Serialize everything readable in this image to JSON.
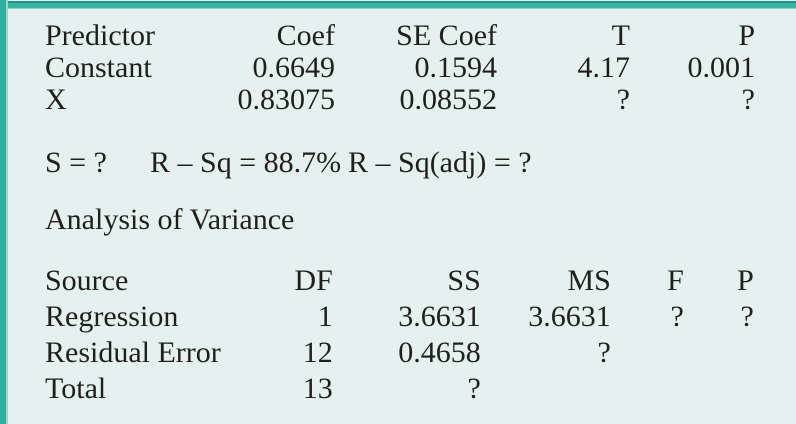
{
  "colors": {
    "panel_background": "#e4f1ee",
    "border_teal": "#35b7a2",
    "border_teal_dark": "#1a9586",
    "text": "#1f1f1f"
  },
  "coefficients_table": {
    "headers": [
      "Predictor",
      "Coef",
      "SE Coef",
      "T",
      "P"
    ],
    "rows": [
      [
        "Constant",
        "0.6649",
        "0.1594",
        "4.17",
        "0.001"
      ],
      [
        "X",
        "0.83075",
        "0.08552",
        "?",
        "?"
      ]
    ]
  },
  "model_summary": {
    "s": "S = ?",
    "r_sq": "R – Sq = 88.7%",
    "r_sq_adj": "R – Sq(adj) = ?"
  },
  "anova": {
    "title": "Analysis of Variance",
    "headers": [
      "Source",
      "DF",
      "SS",
      "MS",
      "F",
      "P"
    ],
    "rows": [
      [
        "Regression",
        "1",
        "3.6631",
        "3.6631",
        "?",
        "?"
      ],
      [
        "Residual Error",
        "12",
        "0.4658",
        "?",
        "",
        ""
      ],
      [
        "Total",
        "13",
        "?",
        "",
        "",
        ""
      ]
    ]
  }
}
